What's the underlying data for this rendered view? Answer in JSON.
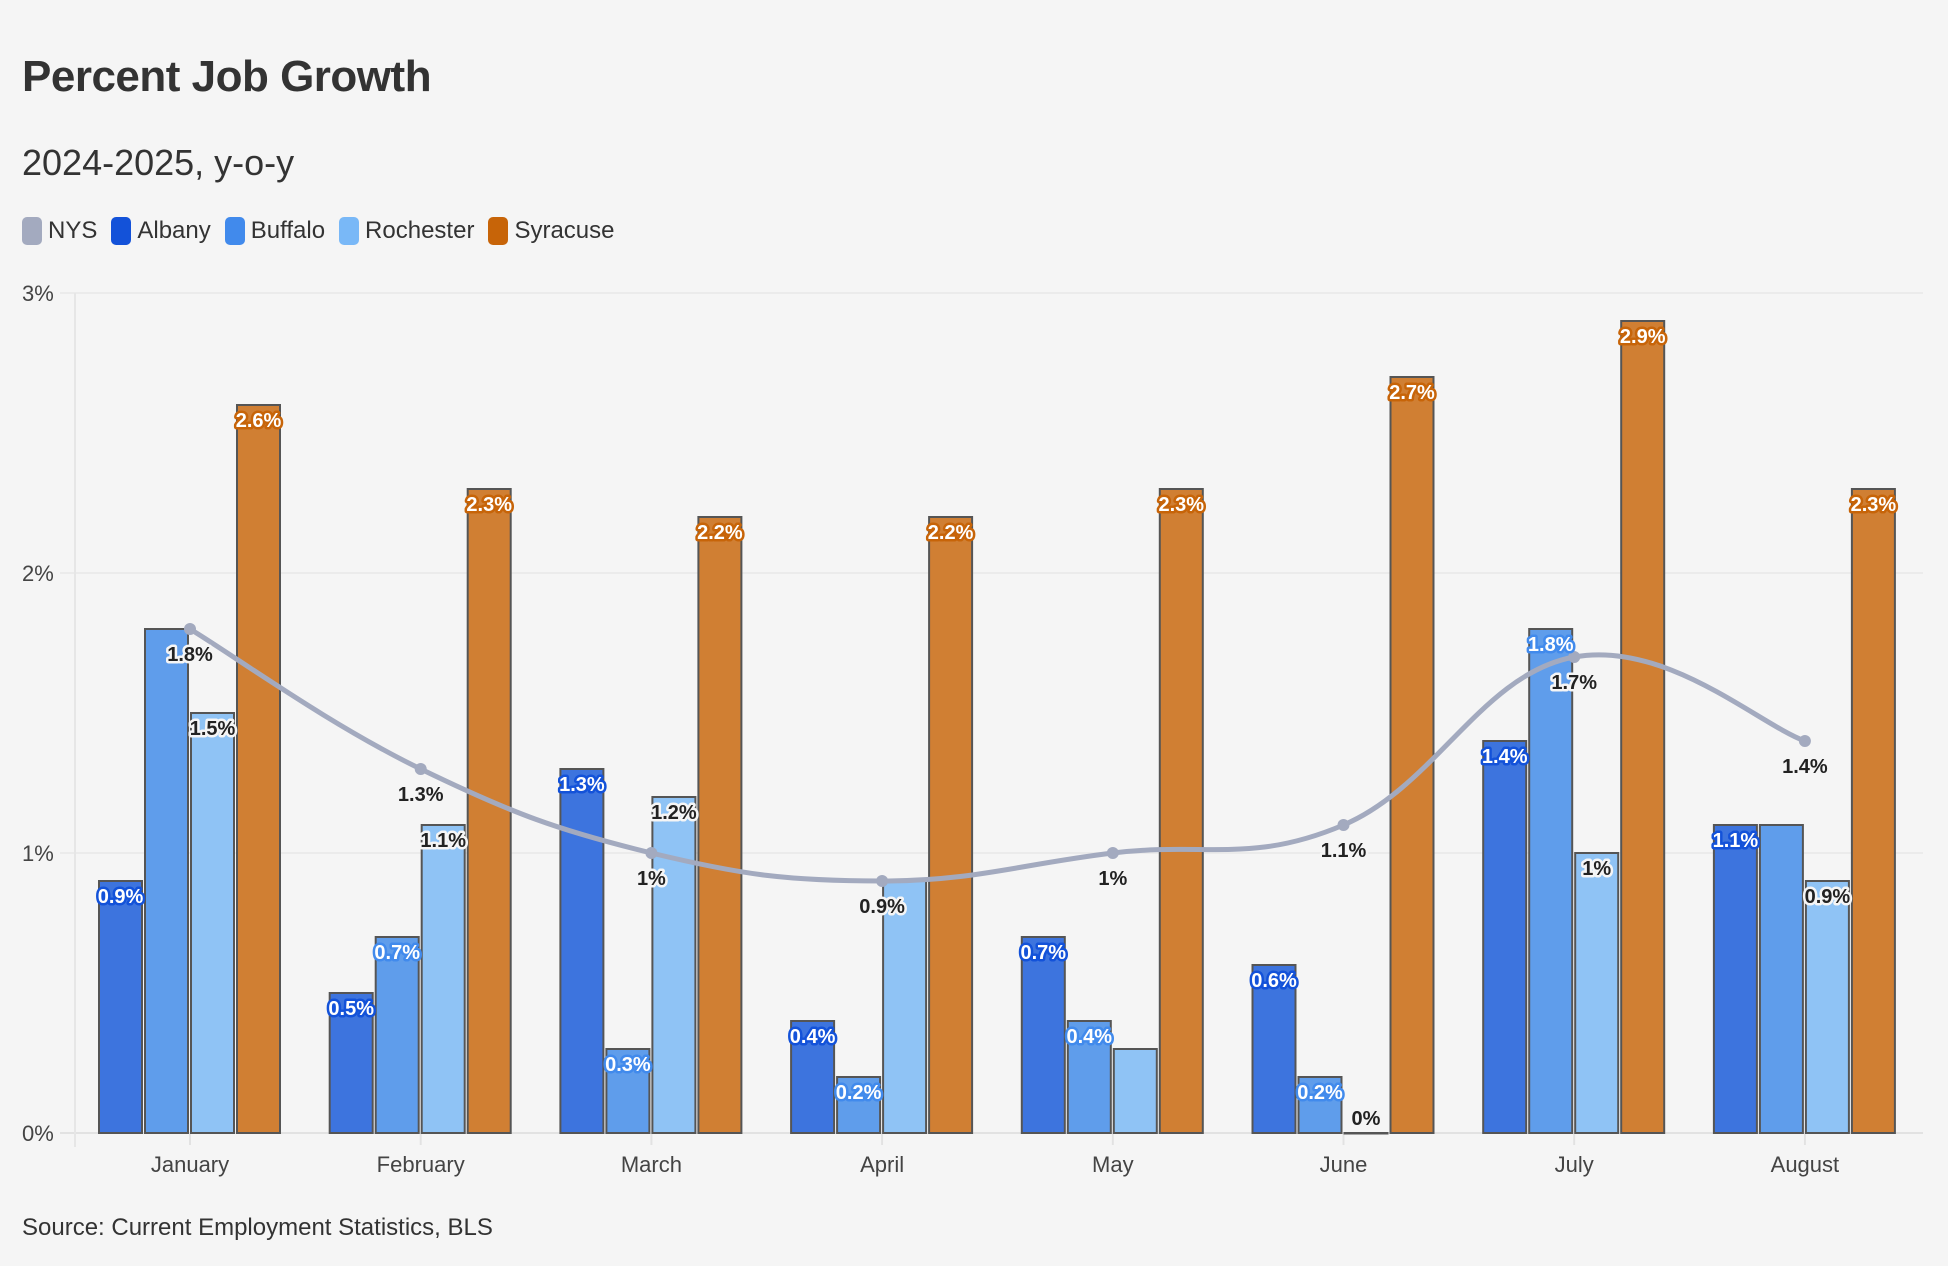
{
  "title": "Percent Job Growth",
  "subtitle": "2024-2025, y-o-y",
  "source": "Source: Current Employment Statistics, BLS",
  "chart_data": {
    "type": "bar",
    "title": "Percent Job Growth",
    "subtitle": "2024-2025, y-o-y",
    "xlabel": "",
    "ylabel": "",
    "ylim": [
      0,
      3
    ],
    "y_ticks": [
      "0%",
      "1%",
      "2%",
      "3%"
    ],
    "grid": true,
    "legend": "top-left",
    "categories": [
      "January",
      "February",
      "March",
      "April",
      "May",
      "June",
      "July",
      "August"
    ],
    "series": [
      {
        "name": "NYS",
        "type": "line",
        "color": "#a3aabf",
        "values": [
          1.8,
          1.3,
          1.0,
          0.9,
          1.0,
          1.1,
          1.7,
          1.4
        ],
        "labels": [
          "1.8%",
          "1.3%",
          "1%",
          "0.9%",
          "1%",
          "1.1%",
          "1.7%",
          "1.4%"
        ]
      },
      {
        "name": "Albany",
        "type": "bar",
        "color": "#1352d9",
        "fill": "#3d74de",
        "values": [
          0.9,
          0.5,
          1.3,
          0.4,
          0.7,
          0.6,
          1.4,
          1.1
        ],
        "labels": [
          "0.9%",
          "0.5%",
          "1.3%",
          "0.4%",
          "0.7%",
          "0.6%",
          "1.4%",
          "1.1%"
        ]
      },
      {
        "name": "Buffalo",
        "type": "bar",
        "color": "#418aec",
        "fill": "#5f9deb",
        "values": [
          1.8,
          0.7,
          0.3,
          0.2,
          0.4,
          0.2,
          1.8,
          1.1
        ],
        "labels": [
          "",
          "0.7%",
          "0.3%",
          "0.2%",
          "0.4%",
          "0.2%",
          "1.8%",
          ""
        ]
      },
      {
        "name": "Rochester",
        "type": "bar",
        "color": "#79b8f7",
        "fill": "#8fc3f5",
        "values": [
          1.5,
          1.1,
          1.2,
          0.9,
          0.3,
          0,
          1.0,
          0.9
        ],
        "labels": [
          "1.5%",
          "1.1%",
          "1.2%",
          "",
          "",
          "0%",
          "1%",
          "0.9%"
        ]
      },
      {
        "name": "Syracuse",
        "type": "bar",
        "color": "#c76408",
        "fill": "#d07f33",
        "values": [
          2.6,
          2.3,
          2.2,
          2.2,
          2.3,
          2.7,
          2.9,
          2.3
        ],
        "labels": [
          "2.6%",
          "2.3%",
          "2.2%",
          "2.2%",
          "2.3%",
          "2.7%",
          "2.9%",
          "2.3%"
        ]
      }
    ]
  }
}
